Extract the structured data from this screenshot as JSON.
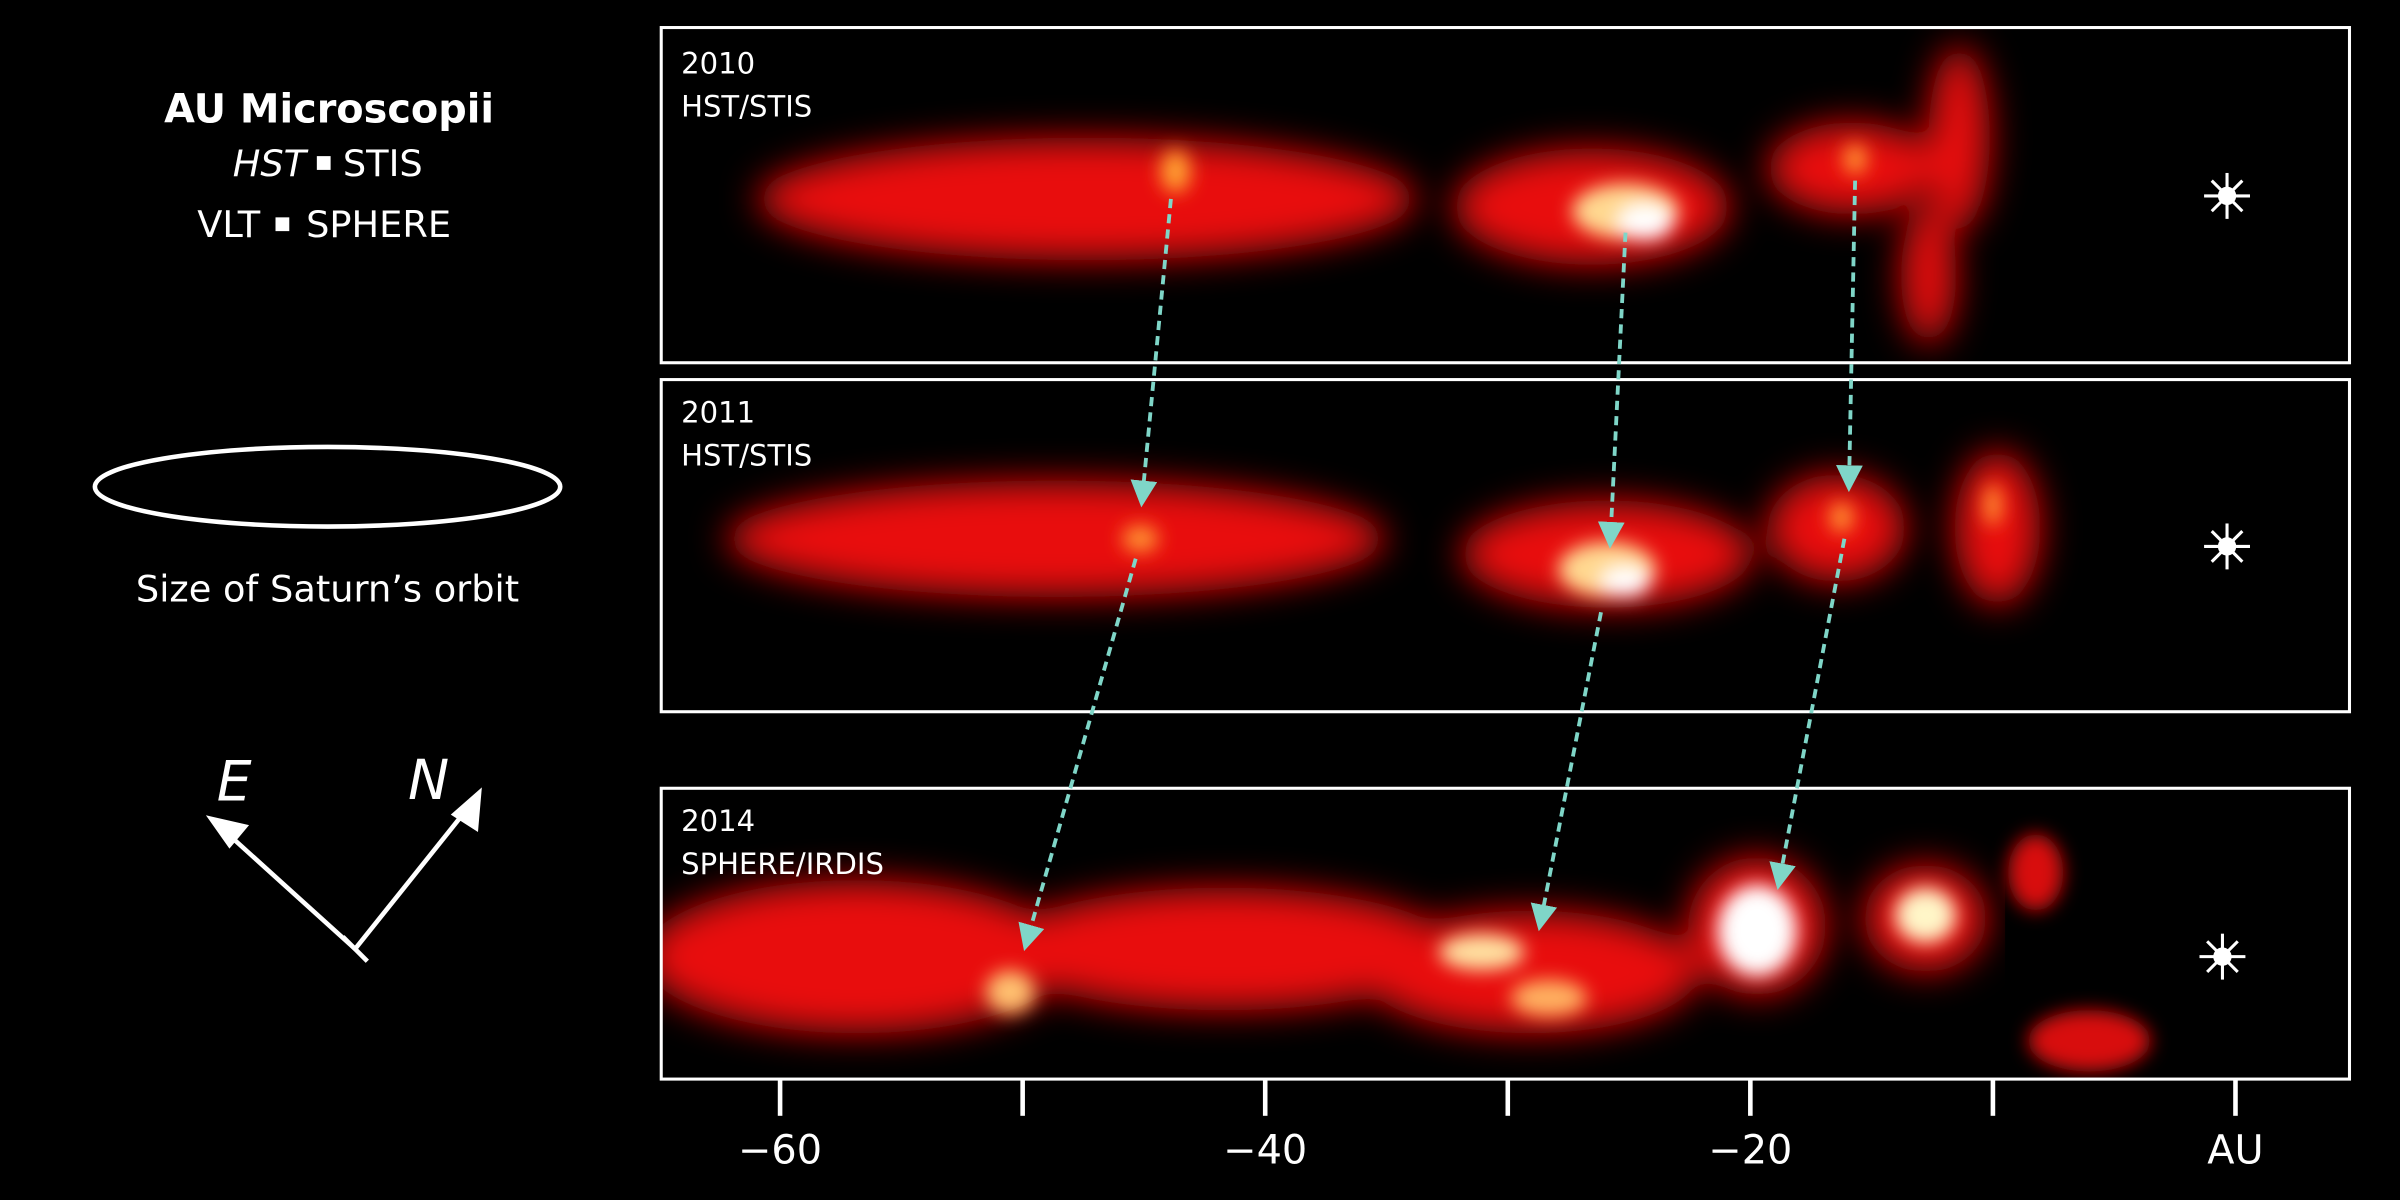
{
  "target": "AU Microscopii",
  "instruments": [
    {
      "telescope": "HST",
      "instrument": "STIS"
    },
    {
      "telescope": "VLT",
      "instrument": "SPHERE"
    }
  ],
  "scale_caption": "Size of Saturn’s orbit",
  "compass": {
    "east": "E",
    "north": "N"
  },
  "panels": [
    {
      "year": "2010",
      "instrument": "HST/STIS"
    },
    {
      "year": "2011",
      "instrument": "HST/STIS"
    },
    {
      "year": "2014",
      "instrument": "SPHERE/IRDIS"
    }
  ],
  "axis": {
    "xlim": [
      -64.9,
      4.7
    ],
    "xticks": [
      {
        "value": -60,
        "label": "−60"
      },
      {
        "value": -40,
        "label": "−40"
      },
      {
        "value": -20,
        "label": "−20"
      },
      {
        "value": 0,
        "label": "AU"
      }
    ],
    "minor_ticks": [
      -50,
      -30,
      -10
    ]
  }
}
